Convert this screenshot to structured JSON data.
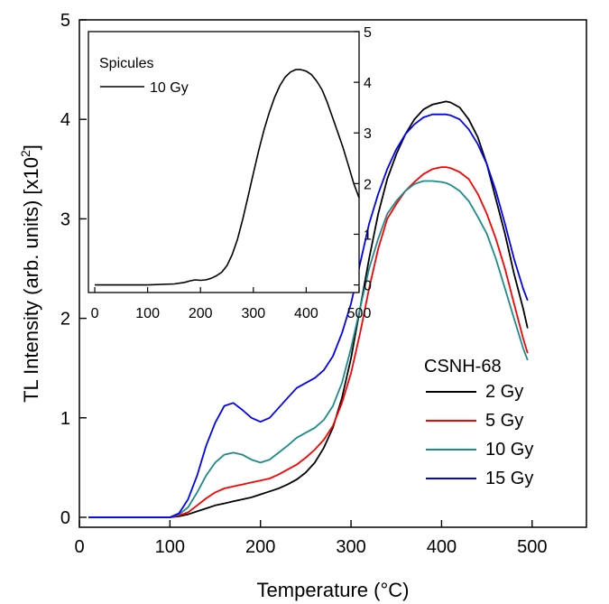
{
  "chart_data": [
    {
      "type": "line",
      "xlabel": "Temperature (°C)",
      "ylabel": "TL Intensity (arb. units) [x10",
      "ylabel_exp": "2",
      "ylabel_tail": "]",
      "xlim": [
        0,
        500
      ],
      "ylim": [
        0,
        5
      ],
      "xticks": [
        "0",
        "100",
        "200",
        "300",
        "400",
        "500"
      ],
      "yticks": [
        "0",
        "1",
        "2",
        "3",
        "4",
        "5"
      ],
      "legend": {
        "title": "CSNH-68",
        "placement": "lower-right"
      },
      "grid": false,
      "series": [
        {
          "name": "2 Gy",
          "color": "#000000",
          "x": [
            10,
            50,
            100,
            110,
            120,
            130,
            140,
            150,
            160,
            170,
            180,
            190,
            200,
            210,
            220,
            230,
            240,
            250,
            260,
            270,
            280,
            290,
            300,
            310,
            320,
            330,
            340,
            350,
            360,
            370,
            380,
            390,
            400,
            405,
            410,
            420,
            430,
            440,
            450,
            460,
            470,
            480,
            490,
            495
          ],
          "y": [
            0,
            0,
            0,
            0.01,
            0.03,
            0.06,
            0.09,
            0.12,
            0.14,
            0.16,
            0.18,
            0.2,
            0.23,
            0.26,
            0.29,
            0.33,
            0.38,
            0.45,
            0.55,
            0.7,
            0.9,
            1.2,
            1.6,
            2.1,
            2.6,
            3.05,
            3.4,
            3.65,
            3.85,
            4.0,
            4.1,
            4.15,
            4.17,
            4.18,
            4.17,
            4.12,
            4.0,
            3.82,
            3.55,
            3.2,
            2.85,
            2.45,
            2.1,
            1.9
          ]
        },
        {
          "name": "5 Gy",
          "color": "#ff0000",
          "x": [
            10,
            50,
            100,
            110,
            120,
            130,
            140,
            150,
            160,
            170,
            180,
            190,
            200,
            210,
            220,
            230,
            240,
            250,
            260,
            270,
            280,
            290,
            300,
            310,
            320,
            330,
            340,
            350,
            360,
            370,
            380,
            390,
            400,
            405,
            410,
            420,
            430,
            440,
            450,
            460,
            470,
            480,
            490,
            495
          ],
          "y": [
            0,
            0,
            0,
            0.02,
            0.05,
            0.12,
            0.19,
            0.25,
            0.29,
            0.31,
            0.33,
            0.35,
            0.37,
            0.39,
            0.43,
            0.48,
            0.53,
            0.6,
            0.68,
            0.78,
            0.92,
            1.15,
            1.45,
            1.85,
            2.3,
            2.7,
            3.0,
            3.15,
            3.28,
            3.37,
            3.45,
            3.5,
            3.52,
            3.52,
            3.51,
            3.47,
            3.4,
            3.25,
            3.05,
            2.8,
            2.5,
            2.15,
            1.8,
            1.65
          ]
        },
        {
          "name": "10 Gy",
          "color": "#1a8c8c",
          "x": [
            10,
            50,
            100,
            110,
            120,
            130,
            140,
            150,
            160,
            170,
            180,
            190,
            200,
            210,
            220,
            230,
            240,
            250,
            260,
            270,
            280,
            290,
            300,
            310,
            320,
            330,
            340,
            350,
            360,
            370,
            380,
            390,
            400,
            405,
            410,
            420,
            430,
            440,
            450,
            460,
            470,
            480,
            490,
            495
          ],
          "y": [
            0,
            0,
            0,
            0.03,
            0.1,
            0.25,
            0.42,
            0.55,
            0.63,
            0.65,
            0.63,
            0.58,
            0.55,
            0.58,
            0.65,
            0.72,
            0.8,
            0.85,
            0.9,
            0.98,
            1.12,
            1.35,
            1.7,
            2.1,
            2.5,
            2.8,
            3.05,
            3.18,
            3.28,
            3.35,
            3.38,
            3.38,
            3.37,
            3.36,
            3.34,
            3.28,
            3.18,
            3.02,
            2.85,
            2.6,
            2.3,
            2.0,
            1.7,
            1.58
          ]
        },
        {
          "name": "15 Gy",
          "color": "#0000ff",
          "x": [
            10,
            50,
            100,
            110,
            120,
            130,
            140,
            150,
            160,
            170,
            180,
            190,
            200,
            210,
            220,
            230,
            240,
            250,
            260,
            270,
            280,
            290,
            300,
            310,
            320,
            330,
            340,
            350,
            360,
            370,
            380,
            390,
            400,
            405,
            410,
            420,
            430,
            440,
            450,
            460,
            470,
            480,
            490,
            495
          ],
          "y": [
            0,
            0,
            0,
            0.04,
            0.18,
            0.42,
            0.72,
            0.95,
            1.12,
            1.15,
            1.08,
            1.0,
            0.96,
            1.0,
            1.1,
            1.2,
            1.3,
            1.35,
            1.4,
            1.48,
            1.62,
            1.85,
            2.15,
            2.55,
            2.95,
            3.25,
            3.5,
            3.7,
            3.85,
            3.95,
            4.02,
            4.05,
            4.05,
            4.05,
            4.04,
            4.0,
            3.9,
            3.75,
            3.55,
            3.28,
            2.95,
            2.6,
            2.3,
            2.18
          ]
        }
      ]
    },
    {
      "type": "line",
      "inset": true,
      "legend": {
        "title": "Spicules",
        "placement": "top-left"
      },
      "xlim": [
        0,
        500
      ],
      "ylim": [
        0,
        5
      ],
      "xticks": [
        "0",
        "100",
        "200",
        "300",
        "400",
        "500"
      ],
      "yticks": [
        "0",
        "1",
        "2",
        "3",
        "4",
        "5"
      ],
      "series": [
        {
          "name": "10 Gy",
          "color": "#000000",
          "x": [
            0,
            50,
            100,
            150,
            170,
            180,
            190,
            200,
            210,
            220,
            230,
            240,
            250,
            260,
            270,
            280,
            290,
            300,
            310,
            320,
            330,
            340,
            350,
            360,
            370,
            380,
            390,
            400,
            410,
            420,
            430,
            440,
            450,
            460,
            470,
            480,
            490,
            500
          ],
          "y": [
            0,
            0,
            0,
            0.02,
            0.05,
            0.08,
            0.1,
            0.09,
            0.1,
            0.13,
            0.18,
            0.25,
            0.38,
            0.6,
            0.9,
            1.3,
            1.75,
            2.2,
            2.65,
            3.05,
            3.4,
            3.7,
            3.93,
            4.1,
            4.2,
            4.25,
            4.25,
            4.22,
            4.15,
            4.02,
            3.85,
            3.6,
            3.3,
            3.0,
            2.7,
            2.35,
            2.0,
            1.72
          ]
        }
      ]
    }
  ]
}
